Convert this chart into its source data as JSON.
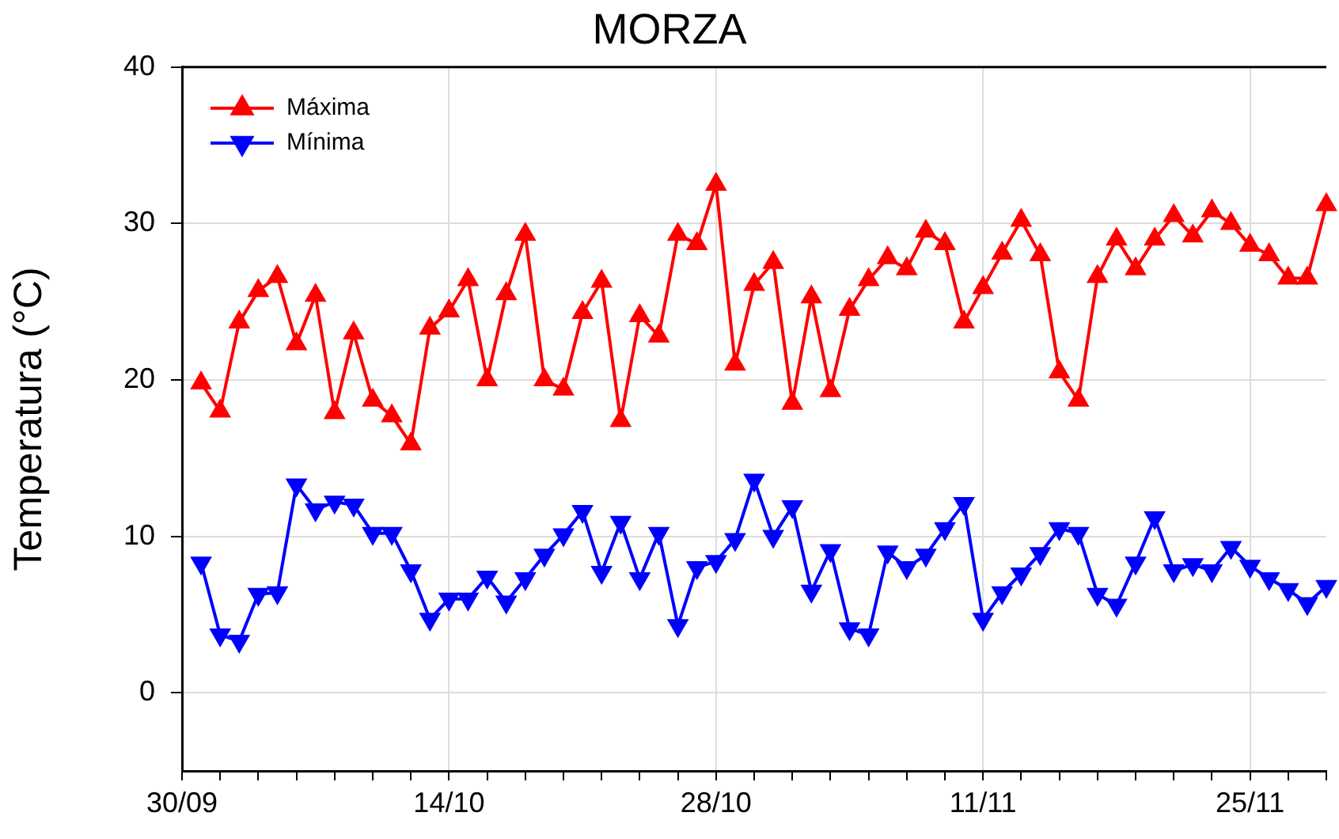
{
  "chart_data": {
    "type": "line",
    "title": "MORZA",
    "ylabel": "Temperatura (°C)",
    "x": [
      "--10-01",
      "--10-02",
      "--10-03",
      "--10-04",
      "--10-05",
      "--10-06",
      "--10-07",
      "--10-08",
      "--10-09",
      "--10-10",
      "--10-11",
      "--10-12",
      "--10-13",
      "--10-14",
      "--10-15",
      "--10-16",
      "--10-17",
      "--10-18",
      "--10-19",
      "--10-20",
      "--10-21",
      "--10-22",
      "--10-23",
      "--10-24",
      "--10-25",
      "--10-26",
      "--10-27",
      "--10-28",
      "--10-29",
      "--10-30",
      "--10-31",
      "--11-01",
      "--11-02",
      "--11-03",
      "--11-04",
      "--11-05",
      "--11-06",
      "--11-07",
      "--11-08",
      "--11-09",
      "--11-10",
      "--11-11",
      "--11-12",
      "--11-13",
      "--11-14",
      "--11-15",
      "--11-16",
      "--11-17",
      "--11-18",
      "--11-19",
      "--11-20",
      "--11-21",
      "--11-22",
      "--11-23",
      "--11-24",
      "--11-25",
      "--11-26",
      "--11-27",
      "--11-28",
      "--11-29"
    ],
    "series": [
      {
        "name": "Máxima",
        "color": "#ff0000",
        "marker": "triangle",
        "values": [
          19.8,
          18.0,
          23.7,
          25.7,
          26.6,
          22.3,
          25.4,
          17.9,
          23.0,
          18.7,
          17.7,
          15.9,
          23.3,
          24.4,
          26.4,
          20.0,
          25.5,
          29.3,
          20.0,
          19.4,
          24.3,
          26.3,
          17.4,
          24.1,
          22.8,
          29.3,
          28.7,
          32.5,
          21.0,
          26.1,
          27.5,
          18.5,
          25.3,
          19.3,
          24.5,
          26.4,
          27.8,
          27.1,
          29.5,
          28.7,
          23.7,
          25.9,
          28.1,
          30.2,
          28.0,
          20.5,
          18.7,
          26.6,
          29.0,
          27.1,
          29.0,
          30.5,
          29.2,
          30.8,
          30.0,
          28.6,
          28.0,
          26.5,
          26.5,
          31.2
        ]
      },
      {
        "name": "Mínima",
        "color": "#0000ff",
        "marker": "triangle-down",
        "values": [
          8.3,
          3.7,
          3.3,
          6.3,
          6.4,
          13.3,
          11.7,
          12.2,
          12.0,
          10.2,
          10.2,
          7.8,
          4.7,
          6.0,
          6.0,
          7.4,
          5.8,
          7.3,
          8.8,
          10.1,
          11.6,
          7.7,
          10.9,
          7.3,
          10.2,
          4.3,
          8.0,
          8.4,
          9.8,
          13.6,
          10.0,
          11.9,
          6.5,
          9.1,
          4.1,
          3.7,
          9.0,
          8.0,
          8.8,
          10.5,
          12.1,
          4.7,
          6.4,
          7.6,
          8.9,
          10.5,
          10.2,
          6.3,
          5.6,
          8.3,
          11.2,
          7.8,
          8.2,
          7.8,
          9.3,
          8.1,
          7.3,
          6.6,
          5.7,
          6.8
        ]
      }
    ],
    "xlim": [
      "--09-30",
      "--11-29"
    ],
    "xticks": [
      {
        "value": "--09-30",
        "label": "30/09"
      },
      {
        "value": "--10-02",
        "label": null
      },
      {
        "value": "--10-04",
        "label": null
      },
      {
        "value": "--10-06",
        "label": null
      },
      {
        "value": "--10-08",
        "label": null
      },
      {
        "value": "--10-10",
        "label": null
      },
      {
        "value": "--10-12",
        "label": null
      },
      {
        "value": "--10-14",
        "label": "14/10"
      },
      {
        "value": "--10-16",
        "label": null
      },
      {
        "value": "--10-18",
        "label": null
      },
      {
        "value": "--10-20",
        "label": null
      },
      {
        "value": "--10-22",
        "label": null
      },
      {
        "value": "--10-24",
        "label": null
      },
      {
        "value": "--10-26",
        "label": null
      },
      {
        "value": "--10-28",
        "label": "28/10"
      },
      {
        "value": "--10-30",
        "label": null
      },
      {
        "value": "--11-01",
        "label": null
      },
      {
        "value": "--11-03",
        "label": null
      },
      {
        "value": "--11-05",
        "label": null
      },
      {
        "value": "--11-07",
        "label": null
      },
      {
        "value": "--11-09",
        "label": null
      },
      {
        "value": "--11-11",
        "label": "11/11"
      },
      {
        "value": "--11-13",
        "label": null
      },
      {
        "value": "--11-15",
        "label": null
      },
      {
        "value": "--11-17",
        "label": null
      },
      {
        "value": "--11-19",
        "label": null
      },
      {
        "value": "--11-21",
        "label": null
      },
      {
        "value": "--11-23",
        "label": null
      },
      {
        "value": "--11-25",
        "label": "25/11"
      },
      {
        "value": "--11-27",
        "label": null
      },
      {
        "value": "--11-29",
        "label": null
      }
    ],
    "ylim": [
      -5,
      40
    ],
    "yticks": [
      0,
      10,
      20,
      30,
      40
    ],
    "grid": true,
    "legend": "top left",
    "line_style": "solid"
  }
}
